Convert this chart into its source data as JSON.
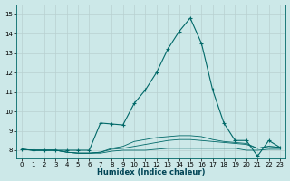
{
  "xlabel": "Humidex (Indice chaleur)",
  "ylabel": "",
  "background_color": "#cce8e8",
  "grid_color": "#b8d0d0",
  "line_color": "#006868",
  "xlim": [
    -0.5,
    23.5
  ],
  "ylim": [
    7.6,
    15.5
  ],
  "xticks": [
    0,
    1,
    2,
    3,
    4,
    5,
    6,
    7,
    8,
    9,
    10,
    11,
    12,
    13,
    14,
    15,
    16,
    17,
    18,
    19,
    20,
    21,
    22,
    23
  ],
  "yticks": [
    8,
    9,
    10,
    11,
    12,
    13,
    14,
    15
  ],
  "series": [
    {
      "x": [
        0,
        1,
        2,
        3,
        4,
        5,
        6,
        7,
        8,
        9,
        10,
        11,
        12,
        13,
        14,
        15,
        16,
        17,
        18,
        19,
        20,
        21,
        22,
        23
      ],
      "y": [
        8.05,
        8.0,
        8.0,
        8.0,
        7.9,
        7.85,
        7.85,
        7.85,
        7.95,
        8.0,
        8.0,
        8.0,
        8.05,
        8.1,
        8.1,
        8.1,
        8.1,
        8.1,
        8.1,
        8.1,
        8.0,
        8.0,
        8.05,
        8.05
      ],
      "with_markers": false
    },
    {
      "x": [
        0,
        1,
        2,
        3,
        4,
        5,
        6,
        7,
        8,
        9,
        10,
        11,
        12,
        13,
        14,
        15,
        16,
        17,
        18,
        19,
        20,
        21,
        22,
        23
      ],
      "y": [
        8.05,
        8.0,
        8.0,
        8.0,
        7.9,
        7.85,
        7.85,
        7.9,
        8.05,
        8.1,
        8.2,
        8.3,
        8.4,
        8.5,
        8.55,
        8.55,
        8.5,
        8.45,
        8.4,
        8.35,
        8.3,
        8.1,
        8.2,
        8.15
      ],
      "with_markers": false
    },
    {
      "x": [
        0,
        1,
        2,
        3,
        4,
        5,
        6,
        7,
        8,
        9,
        10,
        11,
        12,
        13,
        14,
        15,
        16,
        17,
        18,
        19,
        20,
        21,
        22,
        23
      ],
      "y": [
        8.05,
        8.0,
        8.0,
        8.0,
        7.9,
        7.85,
        7.85,
        7.9,
        8.1,
        8.2,
        8.45,
        8.55,
        8.65,
        8.7,
        8.75,
        8.75,
        8.7,
        8.55,
        8.45,
        8.4,
        8.35,
        8.1,
        8.2,
        8.15
      ],
      "with_markers": false
    },
    {
      "x": [
        0,
        1,
        2,
        3,
        4,
        5,
        6,
        7,
        8,
        9,
        10,
        11,
        12,
        13,
        14,
        15,
        16,
        17,
        18,
        19,
        20,
        21,
        22,
        23
      ],
      "y": [
        8.05,
        8.0,
        8.0,
        8.0,
        8.0,
        8.0,
        8.0,
        9.4,
        9.35,
        9.3,
        10.4,
        11.1,
        12.0,
        13.2,
        14.1,
        14.8,
        13.5,
        11.1,
        9.4,
        8.5,
        8.5,
        7.7,
        8.5,
        8.15
      ],
      "with_markers": true
    }
  ]
}
